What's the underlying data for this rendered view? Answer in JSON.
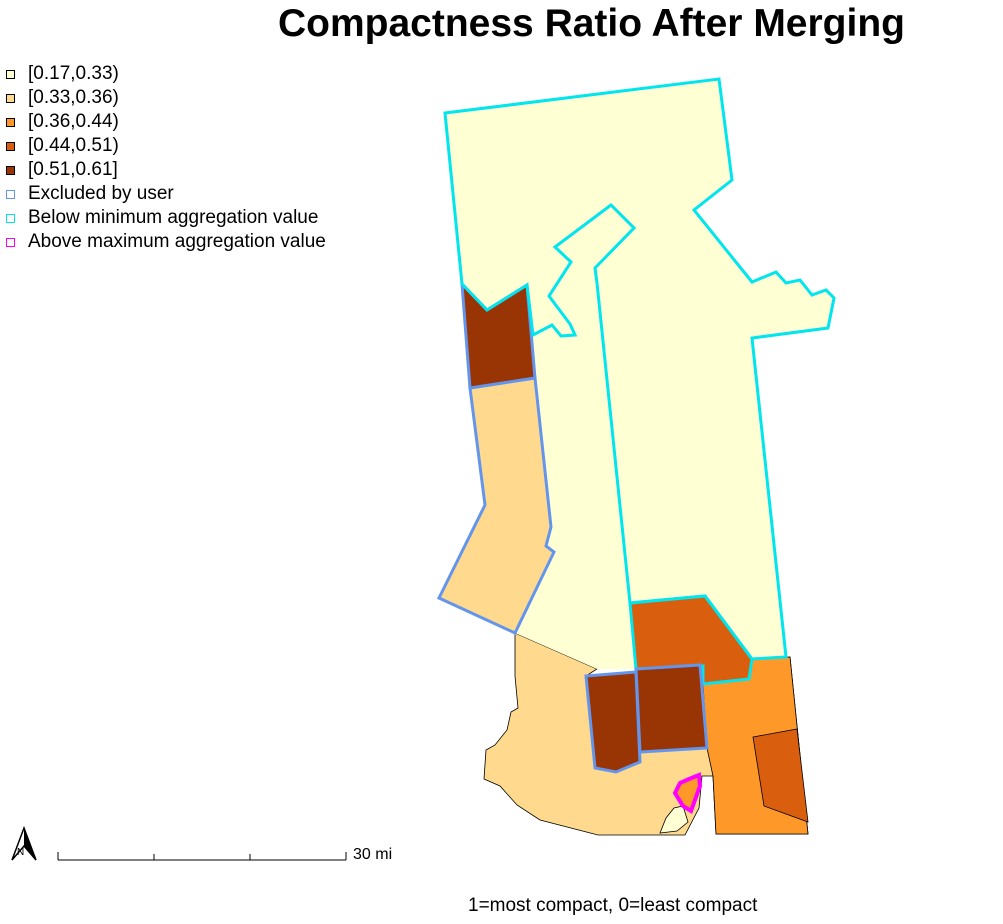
{
  "title": "Compactness Ratio After Merging",
  "caption": "1=most compact, 0=least compact",
  "legend": [
    {
      "label": "[0.17,0.33)",
      "fill": "#FFFFD4",
      "stroke": "#000000"
    },
    {
      "label": "[0.33,0.36)",
      "fill": "#FED98E",
      "stroke": "#000000"
    },
    {
      "label": "[0.36,0.44)",
      "fill": "#FE9929",
      "stroke": "#000000"
    },
    {
      "label": "[0.44,0.51)",
      "fill": "#D95F0E",
      "stroke": "#000000"
    },
    {
      "label": "[0.51,0.61]",
      "fill": "#993404",
      "stroke": "#000000"
    },
    {
      "label": "Excluded by user",
      "fill": "#FFFFFF",
      "stroke": "#6495ED"
    },
    {
      "label": "Below minimum aggregation value",
      "fill": "#FFFFFF",
      "stroke": "#00E5EE"
    },
    {
      "label": "Above maximum aggregation value",
      "fill": "#FFFFFF",
      "stroke": "#FF00FF"
    }
  ],
  "scale_bar": {
    "label": "30 mi"
  },
  "north_arrow": {
    "label": "N"
  },
  "colors": {
    "bin1": "#FFFFD4",
    "bin2": "#FED98E",
    "bin3": "#FE9929",
    "bin4": "#D95F0E",
    "bin5": "#993404",
    "excluded": "#6495ED",
    "below_min": "#00E5EE",
    "above_max": "#FF00FF"
  }
}
